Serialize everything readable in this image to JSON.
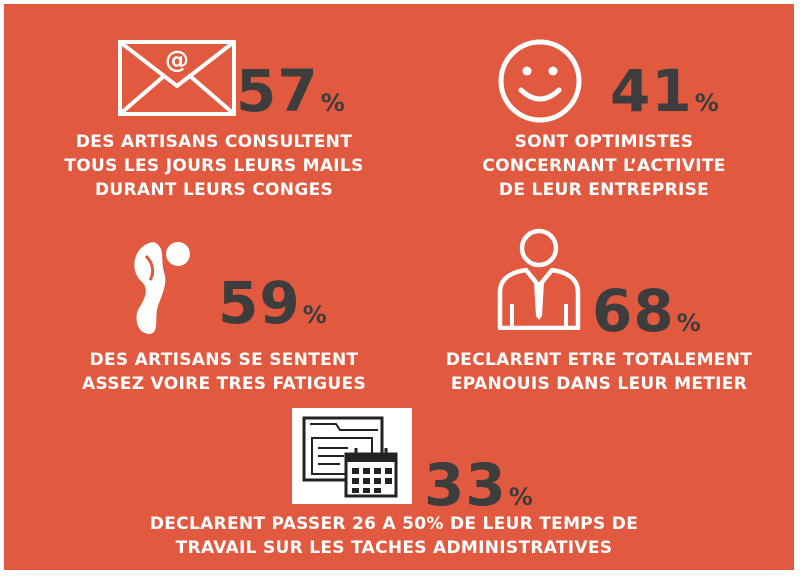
{
  "stats": [
    {
      "value": "57",
      "unit": "%",
      "caption": "DES ARTISANS CONSULTENT\nTOUS LES JOURS LEURS MAILS\nDURANT LEURS CONGES",
      "icon": "mail-envelope-icon"
    },
    {
      "value": "41",
      "unit": "%",
      "caption": "SONT OPTIMISTES\nCONCERNANT L’ACTIVITE\nDE LEUR ENTREPRISE",
      "icon": "smiley-face-icon"
    },
    {
      "value": "59",
      "unit": "%",
      "caption": "DES ARTISANS SE SENTENT\nASSEZ VOIRE TRES FATIGUES",
      "icon": "tired-figure-icon"
    },
    {
      "value": "68",
      "unit": "%",
      "caption": "DECLARENT ETRE TOTALEMENT\nEPANOUIS DANS LEUR METIER",
      "icon": "businessman-icon"
    },
    {
      "value": "33",
      "unit": "%",
      "caption": "DECLARENT PASSER 26 A 50% DE LEUR TEMPS DE\nTRAVAIL SUR LES TACHES ADMINISTRATIVES",
      "icon": "folder-calendar-icon"
    }
  ],
  "colors": {
    "background": "#e15a40",
    "number": "#3d3d3d",
    "caption": "#ffffff"
  }
}
